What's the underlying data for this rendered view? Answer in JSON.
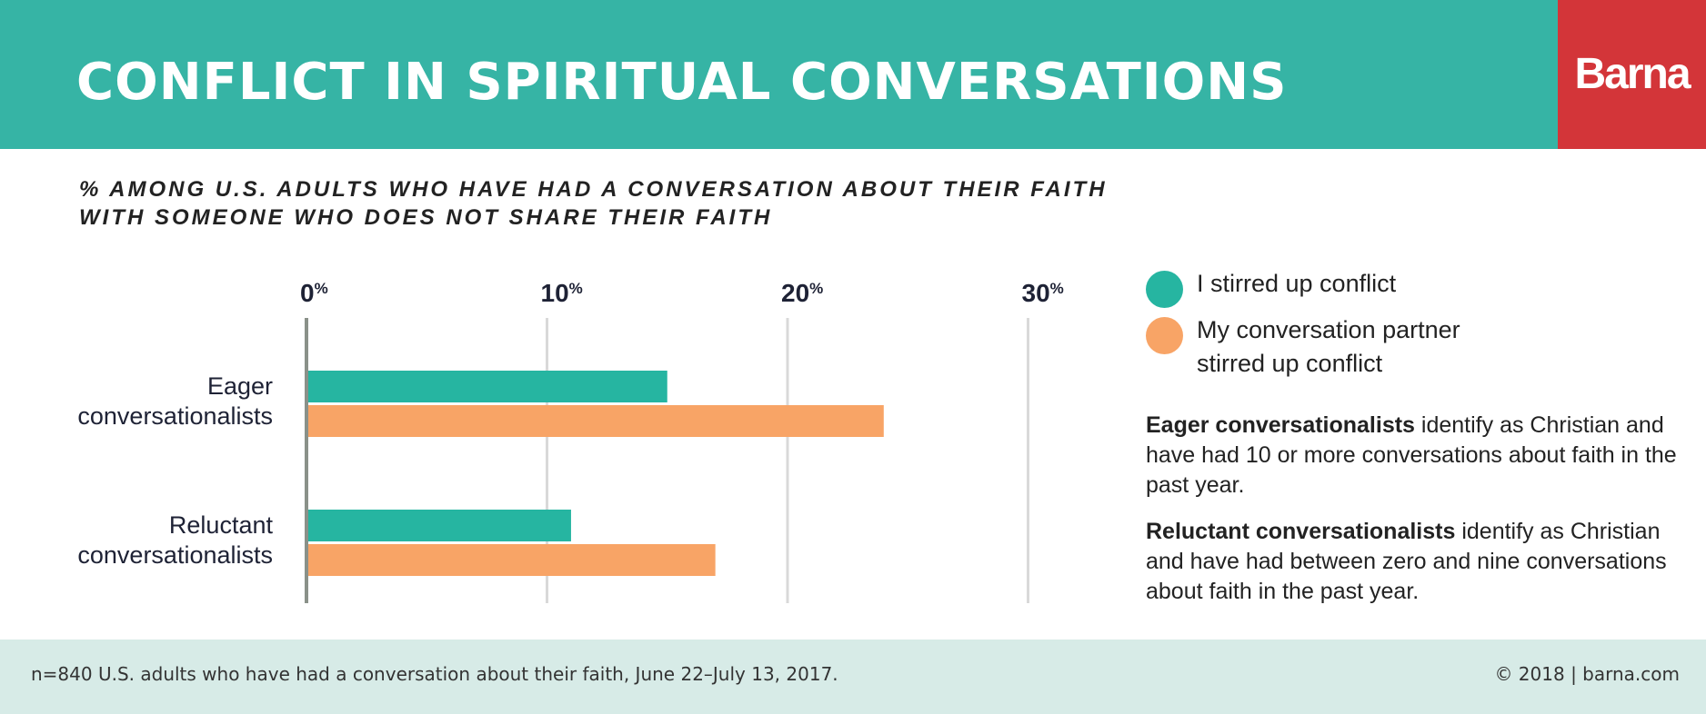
{
  "header": {
    "title": "CONFLICT IN SPIRITUAL CONVERSATIONS",
    "logo": "Barna"
  },
  "subtitle_lines": [
    "% AMONG U.S. ADULTS WHO HAVE HAD A CONVERSATION ABOUT THEIR FAITH",
    "WITH SOMEONE WHO DOES NOT SHARE THEIR FAITH"
  ],
  "colors": {
    "header_bg": "#36b4a5",
    "logo_bg": "#d33539",
    "series_1": "#26b5a1",
    "series_2": "#f8a466",
    "footer_bg": "#d7ebe7"
  },
  "chart_data": {
    "type": "bar",
    "orientation": "horizontal",
    "title": "CONFLICT IN SPIRITUAL CONVERSATIONS",
    "subtitle": "% AMONG U.S. ADULTS WHO HAVE HAD A CONVERSATION ABOUT THEIR FAITH WITH SOMEONE WHO DOES NOT SHARE THEIR FAITH",
    "categories": [
      [
        "Eager",
        "conversationalists"
      ],
      [
        "Reluctant",
        "conversationalists"
      ]
    ],
    "series": [
      {
        "name": "I stirred up conflict",
        "color": "#26b5a1",
        "values": [
          15,
          11
        ]
      },
      {
        "name": "My conversation partner stirred up conflict",
        "color": "#f8a466",
        "values": [
          24,
          17
        ]
      }
    ],
    "x_ticks": [
      {
        "value": 0,
        "num": "0",
        "unit": "%"
      },
      {
        "value": 10,
        "num": "10",
        "unit": "%"
      },
      {
        "value": 20,
        "num": "20",
        "unit": "%"
      },
      {
        "value": 30,
        "num": "30",
        "unit": "%"
      }
    ],
    "xlim": [
      0,
      30
    ],
    "grid": true,
    "legend_position": "right"
  },
  "legend": [
    {
      "lines": [
        "I stirred up conflict"
      ]
    },
    {
      "lines": [
        "My conversation partner",
        "stirred up conflict"
      ]
    }
  ],
  "notes": [
    {
      "term": "Eager conversationalists",
      "text": " identify as Christian and have had 10 or more conversations about faith in the past year."
    },
    {
      "term": "Reluctant conversationalists",
      "text": " identify as Christian and have had between zero and nine conversations about faith in the past year."
    }
  ],
  "footer": {
    "source": "n=840 U.S. adults who have had a conversation about their faith, June 22–July 13, 2017.",
    "copyright": "© 2018 | barna.com"
  }
}
